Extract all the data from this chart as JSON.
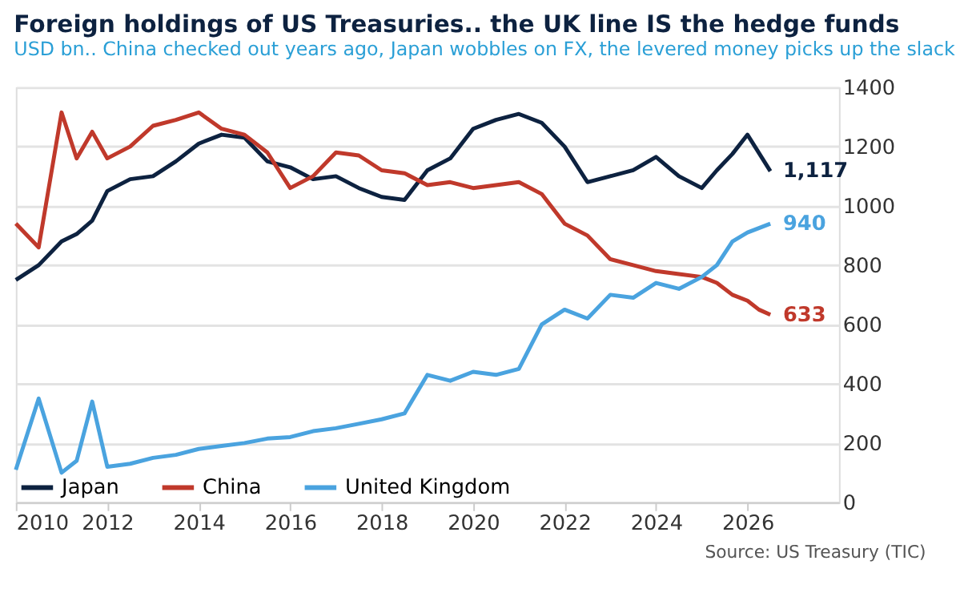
{
  "chart_data": {
    "type": "line",
    "title": "Foreign holdings of US Treasuries.. the UK line IS the hedge funds",
    "subtitle": "USD bn.. China checked out years ago, Japan wobbles on FX, the levered money picks up the slack",
    "annotations": [
      "Source: US Treasury (TIC)"
    ],
    "xlim": [
      2010,
      2028
    ],
    "xticks": [
      2010,
      2012,
      2014,
      2016,
      2018,
      2020,
      2022,
      2024,
      2026
    ],
    "ylim": [
      0,
      1400
    ],
    "yticks": [
      0,
      200,
      400,
      600,
      800,
      1000,
      1200,
      1400
    ],
    "grid": "y",
    "legend": "bottom left",
    "line_style": "solid",
    "marker": "none",
    "series": [
      {
        "name": "Japan",
        "color": "#0d2240",
        "x": [
          2010,
          2010.5,
          2011,
          2011.33,
          2011.67,
          2012,
          2012.5,
          2013,
          2013.5,
          2014,
          2014.5,
          2015,
          2015.5,
          2016,
          2016.5,
          2017,
          2017.5,
          2018,
          2018.5,
          2019,
          2019.5,
          2020,
          2020.5,
          2021,
          2021.5,
          2022,
          2022.5,
          2023,
          2023.5,
          2024,
          2024.5,
          2025,
          2025.33,
          2025.67,
          2026,
          2026.5
        ],
        "values": [
          750,
          800,
          880,
          905,
          950,
          1050,
          1090,
          1100,
          1150,
          1210,
          1240,
          1230,
          1150,
          1130,
          1090,
          1100,
          1060,
          1030,
          1020,
          1120,
          1160,
          1260,
          1290,
          1310,
          1280,
          1200,
          1080,
          1100,
          1120,
          1165,
          1100,
          1060,
          1120,
          1175,
          1240,
          1117
        ],
        "value_labels": [
          null,
          null,
          null,
          null,
          null,
          null,
          null,
          null,
          null,
          null,
          null,
          null,
          null,
          null,
          null,
          null,
          null,
          null,
          null,
          null,
          null,
          null,
          null,
          null,
          null,
          null,
          null,
          null,
          null,
          null,
          null,
          null,
          null,
          null,
          null,
          "1,117"
        ]
      },
      {
        "name": "China",
        "color": "#c0392b",
        "x": [
          2010,
          2010.5,
          2011,
          2011.33,
          2011.67,
          2012,
          2012.5,
          2013,
          2013.5,
          2014,
          2014.5,
          2015,
          2015.5,
          2016,
          2016.5,
          2017,
          2017.5,
          2018,
          2018.5,
          2019,
          2019.5,
          2020,
          2020.5,
          2021,
          2021.5,
          2022,
          2022.5,
          2023,
          2023.5,
          2024,
          2024.5,
          2025,
          2025.33,
          2025.67,
          2026,
          2026.25,
          2026.5
        ],
        "values": [
          940,
          860,
          1315,
          1160,
          1250,
          1160,
          1200,
          1270,
          1290,
          1315,
          1260,
          1240,
          1180,
          1060,
          1100,
          1180,
          1170,
          1120,
          1110,
          1070,
          1080,
          1060,
          1070,
          1080,
          1040,
          940,
          900,
          820,
          800,
          780,
          770,
          760,
          740,
          700,
          680,
          650,
          633
        ],
        "value_labels": [
          null,
          null,
          null,
          null,
          null,
          null,
          null,
          null,
          null,
          null,
          null,
          null,
          null,
          null,
          null,
          null,
          null,
          null,
          null,
          null,
          null,
          null,
          null,
          null,
          null,
          null,
          null,
          null,
          null,
          null,
          null,
          null,
          null,
          null,
          null,
          null,
          "633"
        ]
      },
      {
        "name": "United Kingdom",
        "color": "#4aa3df",
        "x": [
          2010,
          2010.5,
          2011,
          2011.33,
          2011.67,
          2012,
          2012.5,
          2013,
          2013.5,
          2014,
          2014.5,
          2015,
          2015.5,
          2016,
          2016.5,
          2017,
          2017.5,
          2018,
          2018.5,
          2019,
          2019.5,
          2020,
          2020.5,
          2021,
          2021.5,
          2022,
          2022.5,
          2023,
          2023.5,
          2024,
          2024.5,
          2025,
          2025.33,
          2025.67,
          2026,
          2026.5
        ],
        "values": [
          110,
          350,
          100,
          140,
          340,
          120,
          130,
          150,
          160,
          180,
          190,
          200,
          215,
          220,
          240,
          250,
          265,
          280,
          300,
          430,
          410,
          440,
          430,
          450,
          600,
          650,
          620,
          700,
          690,
          740,
          720,
          760,
          800,
          880,
          910,
          940
        ],
        "value_labels": [
          null,
          null,
          null,
          null,
          null,
          null,
          null,
          null,
          null,
          null,
          null,
          null,
          null,
          null,
          null,
          null,
          null,
          null,
          null,
          null,
          null,
          null,
          null,
          null,
          null,
          null,
          null,
          null,
          null,
          null,
          null,
          null,
          null,
          null,
          null,
          "940"
        ]
      }
    ]
  }
}
